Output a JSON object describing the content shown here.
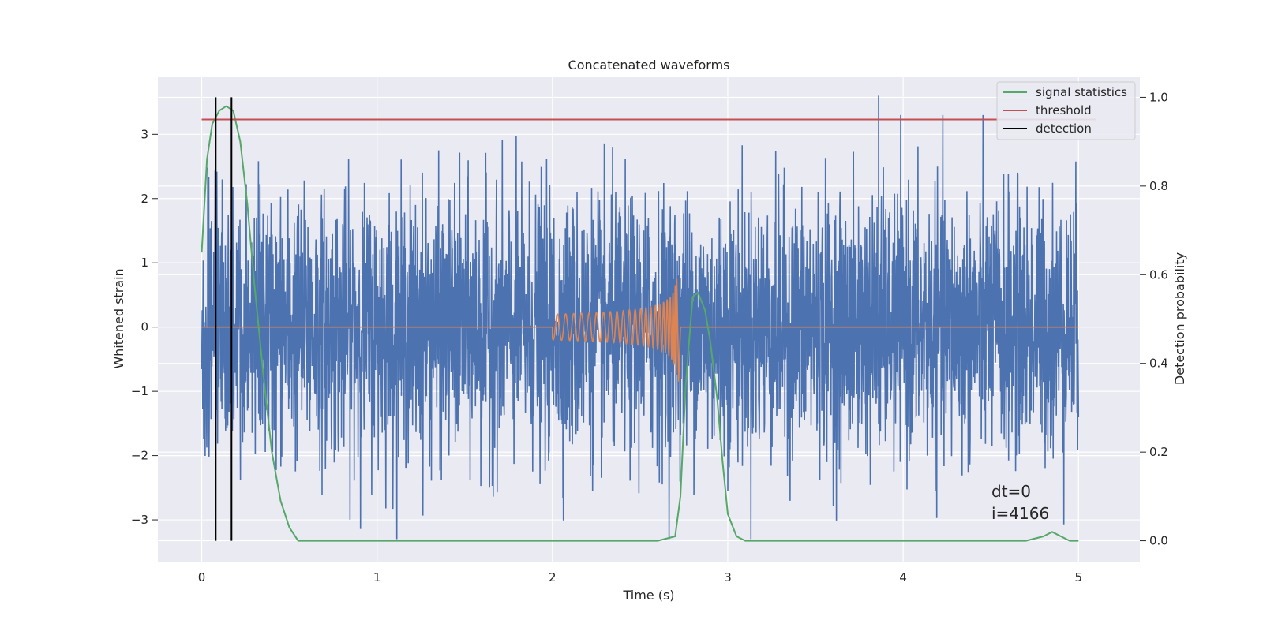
{
  "chart_data": {
    "type": "line",
    "title": "Concatenated waveforms",
    "xlabel": "Time (s)",
    "ylabel": "Whitened strain",
    "y2label": "Detection probability",
    "xlim": [
      -0.25,
      5.35
    ],
    "ylim": [
      -3.65,
      3.9
    ],
    "y2lim": [
      -0.047,
      1.047
    ],
    "x_ticks": [
      0,
      1,
      2,
      3,
      4,
      5
    ],
    "y_ticks": [
      -3,
      -2,
      -1,
      0,
      1,
      2,
      3
    ],
    "y2_ticks": [
      0.0,
      0.2,
      0.4,
      0.6,
      0.8,
      1.0
    ],
    "x_tick_labels": [
      "0",
      "1",
      "2",
      "3",
      "4",
      "5"
    ],
    "y_tick_labels": [
      "−3",
      "−2",
      "−1",
      "0",
      "1",
      "2",
      "3"
    ],
    "y2_tick_labels": [
      "0.0",
      "0.2",
      "0.4",
      "0.6",
      "0.8",
      "1.0"
    ],
    "grid": true,
    "legend_position": "top-right",
    "annotations": [
      "dt=0",
      "i=4166"
    ],
    "series": [
      {
        "name": "",
        "axis": "left",
        "color": "#4c72b0",
        "kind": "noise",
        "x_range": [
          0,
          5
        ],
        "envelope_typical": 2.2,
        "envelope_max": 3.3,
        "spike": {
          "x": 3.86,
          "y": 3.6
        }
      },
      {
        "name": "",
        "axis": "left",
        "color": "#dd8452",
        "kind": "chirp",
        "x_range": [
          0,
          5
        ],
        "chirp_start": 2.0,
        "chirp_end": 2.71,
        "amp_start": 0.2,
        "amp_end": 0.75
      },
      {
        "name": "signal statistics",
        "axis": "right",
        "color": "#55a868",
        "x": [
          0,
          0.03,
          0.06,
          0.1,
          0.14,
          0.18,
          0.22,
          0.26,
          0.3,
          0.35,
          0.4,
          0.45,
          0.5,
          0.55,
          0.6,
          1.0,
          2.0,
          2.6,
          2.7,
          2.73,
          2.76,
          2.8,
          2.83,
          2.87,
          2.9,
          2.94,
          2.97,
          3.0,
          3.05,
          3.1,
          3.5,
          4.0,
          4.5,
          4.7,
          4.8,
          4.85,
          4.9,
          4.95,
          5.0
        ],
        "y": [
          0.65,
          0.86,
          0.94,
          0.97,
          0.98,
          0.97,
          0.9,
          0.76,
          0.58,
          0.38,
          0.2,
          0.09,
          0.03,
          0.0,
          0.0,
          0.0,
          0.0,
          0.0,
          0.01,
          0.1,
          0.35,
          0.55,
          0.56,
          0.52,
          0.45,
          0.32,
          0.18,
          0.06,
          0.01,
          0.0,
          0.0,
          0.0,
          0.0,
          0.0,
          0.01,
          0.02,
          0.01,
          0.0,
          0.0
        ]
      },
      {
        "name": "threshold",
        "axis": "right",
        "color": "#c44e52",
        "x": [
          0,
          5.1
        ],
        "y": [
          0.95,
          0.95
        ]
      },
      {
        "name": "detection",
        "axis": "right",
        "color": "#000000",
        "kind": "vlines",
        "x": [
          0.08,
          0.17
        ],
        "y_range": [
          0.0,
          1.0
        ]
      }
    ]
  }
}
